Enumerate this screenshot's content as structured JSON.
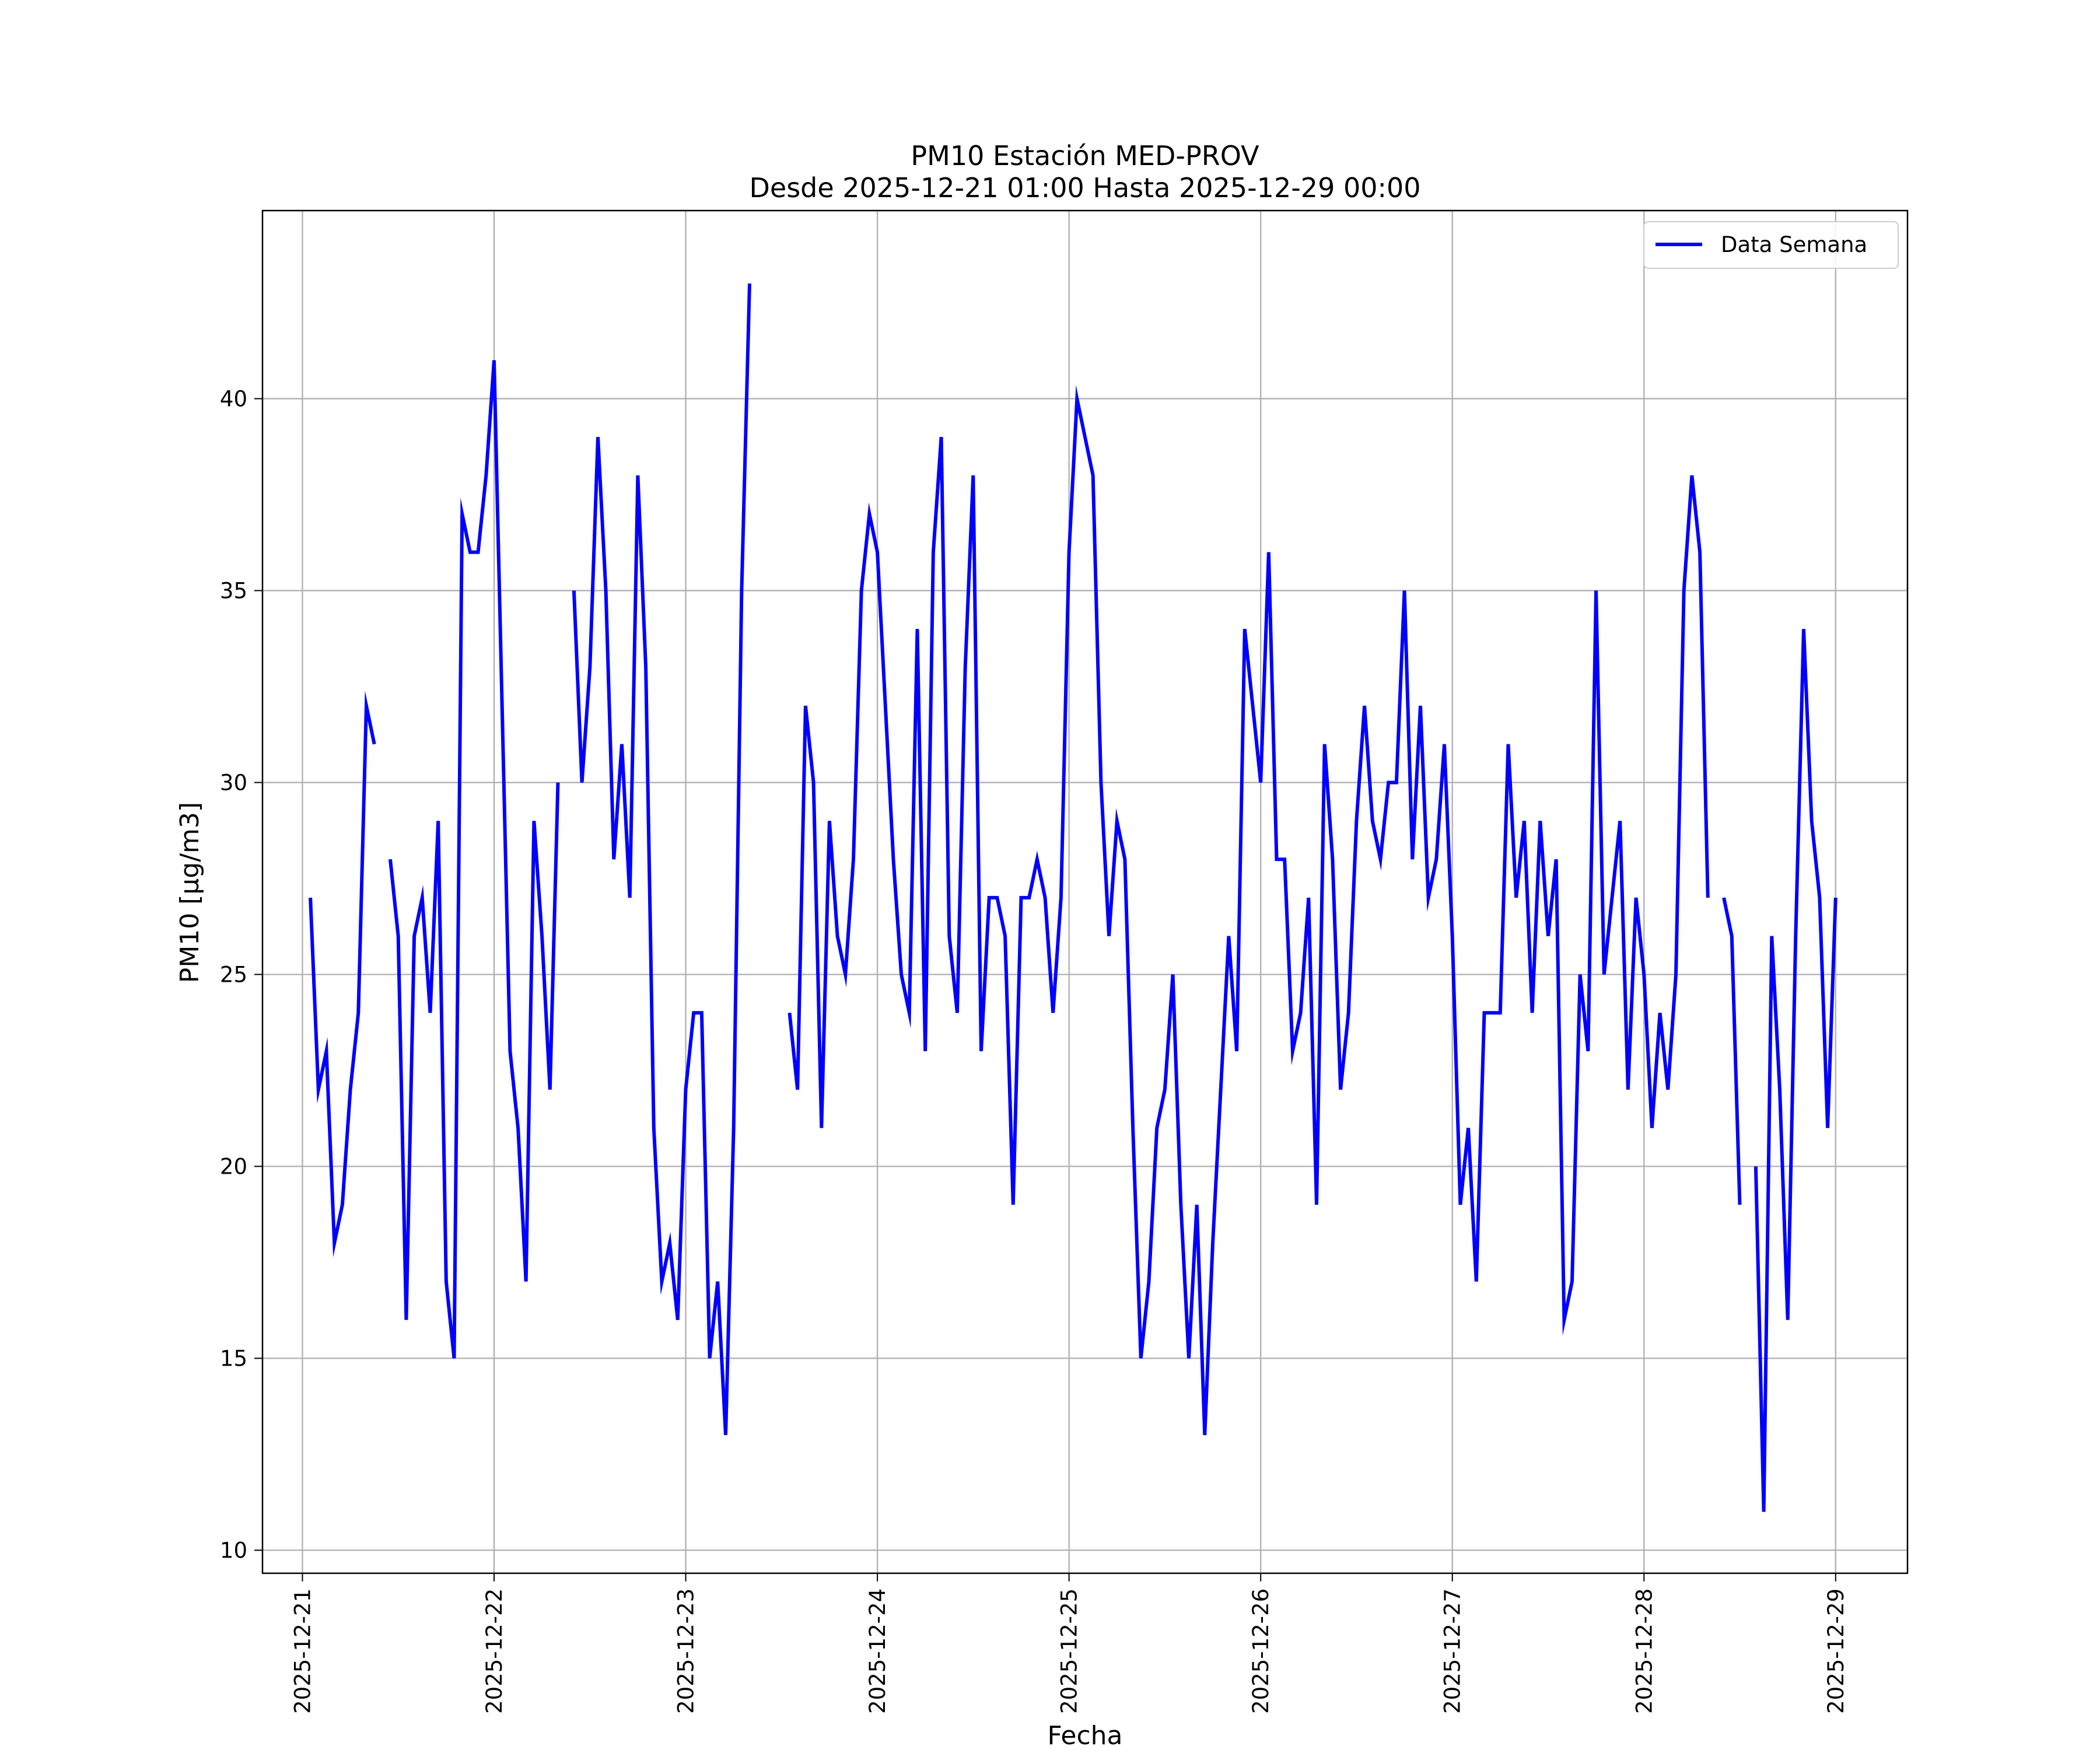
{
  "chart_data": {
    "type": "line",
    "title": "PM10 Estación MED-PROV",
    "subtitle": "Desde 2025-12-21 01:00 Hasta 2025-12-29 00:00",
    "xlabel": "Fecha",
    "ylabel": "PM10 [μg/m3]",
    "xlim": [
      "2025-12-20T19:00",
      "2025-12-29T09:00"
    ],
    "ylim": [
      9.4,
      44.9
    ],
    "x_ticks": [
      "2025-12-21",
      "2025-12-22",
      "2025-12-23",
      "2025-12-24",
      "2025-12-25",
      "2025-12-26",
      "2025-12-27",
      "2025-12-28",
      "2025-12-29"
    ],
    "y_ticks": [
      10,
      15,
      20,
      25,
      30,
      35,
      40
    ],
    "grid": true,
    "legend": {
      "position": "top-right",
      "entries": [
        "Data Semana"
      ]
    },
    "series": [
      {
        "name": "Data Semana",
        "color": "#0000ff",
        "segments": [
          [
            [
              "2025-12-21T01:00",
              27
            ],
            [
              "2025-12-21T02:00",
              22
            ],
            [
              "2025-12-21T03:00",
              23
            ],
            [
              "2025-12-21T04:00",
              18
            ],
            [
              "2025-12-21T05:00",
              19
            ],
            [
              "2025-12-21T06:00",
              22
            ],
            [
              "2025-12-21T07:00",
              24
            ],
            [
              "2025-12-21T08:00",
              32
            ],
            [
              "2025-12-21T09:00",
              31
            ]
          ],
          [
            [
              "2025-12-21T11:00",
              28
            ],
            [
              "2025-12-21T12:00",
              26
            ],
            [
              "2025-12-21T13:00",
              16
            ],
            [
              "2025-12-21T14:00",
              26
            ],
            [
              "2025-12-21T15:00",
              27
            ],
            [
              "2025-12-21T16:00",
              24
            ],
            [
              "2025-12-21T17:00",
              29
            ],
            [
              "2025-12-21T18:00",
              17
            ],
            [
              "2025-12-21T19:00",
              15
            ],
            [
              "2025-12-21T20:00",
              37
            ],
            [
              "2025-12-21T21:00",
              36
            ],
            [
              "2025-12-21T22:00",
              36
            ],
            [
              "2025-12-21T23:00",
              38
            ],
            [
              "2025-12-22T00:00",
              41
            ],
            [
              "2025-12-22T01:00",
              32
            ],
            [
              "2025-12-22T02:00",
              23
            ],
            [
              "2025-12-22T03:00",
              21
            ],
            [
              "2025-12-22T04:00",
              17
            ],
            [
              "2025-12-22T05:00",
              29
            ],
            [
              "2025-12-22T06:00",
              26
            ],
            [
              "2025-12-22T07:00",
              22
            ],
            [
              "2025-12-22T08:00",
              30
            ]
          ],
          [
            [
              "2025-12-22T10:00",
              35
            ],
            [
              "2025-12-22T11:00",
              30
            ],
            [
              "2025-12-22T12:00",
              33
            ],
            [
              "2025-12-22T13:00",
              39
            ],
            [
              "2025-12-22T14:00",
              35
            ],
            [
              "2025-12-22T15:00",
              28
            ],
            [
              "2025-12-22T16:00",
              31
            ],
            [
              "2025-12-22T17:00",
              27
            ],
            [
              "2025-12-22T18:00",
              38
            ],
            [
              "2025-12-22T19:00",
              33
            ],
            [
              "2025-12-22T20:00",
              21
            ],
            [
              "2025-12-22T21:00",
              17
            ],
            [
              "2025-12-22T22:00",
              18
            ],
            [
              "2025-12-22T23:00",
              16
            ],
            [
              "2025-12-23T00:00",
              22
            ],
            [
              "2025-12-23T01:00",
              24
            ],
            [
              "2025-12-23T02:00",
              24
            ],
            [
              "2025-12-23T03:00",
              15
            ],
            [
              "2025-12-23T04:00",
              17
            ],
            [
              "2025-12-23T05:00",
              13
            ],
            [
              "2025-12-23T06:00",
              21
            ],
            [
              "2025-12-23T07:00",
              35
            ],
            [
              "2025-12-23T08:00",
              43
            ]
          ],
          [
            [
              "2025-12-23T13:00",
              24
            ],
            [
              "2025-12-23T14:00",
              22
            ],
            [
              "2025-12-23T15:00",
              32
            ],
            [
              "2025-12-23T16:00",
              30
            ],
            [
              "2025-12-23T17:00",
              21
            ],
            [
              "2025-12-23T18:00",
              29
            ],
            [
              "2025-12-23T19:00",
              26
            ],
            [
              "2025-12-23T20:00",
              25
            ],
            [
              "2025-12-23T21:00",
              28
            ],
            [
              "2025-12-23T22:00",
              35
            ],
            [
              "2025-12-23T23:00",
              37
            ],
            [
              "2025-12-24T00:00",
              36
            ],
            [
              "2025-12-24T01:00",
              32
            ],
            [
              "2025-12-24T02:00",
              28
            ],
            [
              "2025-12-24T03:00",
              25
            ],
            [
              "2025-12-24T04:00",
              24
            ],
            [
              "2025-12-24T05:00",
              34
            ],
            [
              "2025-12-24T06:00",
              23
            ],
            [
              "2025-12-24T07:00",
              36
            ],
            [
              "2025-12-24T08:00",
              39
            ],
            [
              "2025-12-24T09:00",
              26
            ],
            [
              "2025-12-24T10:00",
              24
            ],
            [
              "2025-12-24T11:00",
              33
            ],
            [
              "2025-12-24T12:00",
              38
            ],
            [
              "2025-12-24T13:00",
              23
            ],
            [
              "2025-12-24T14:00",
              27
            ],
            [
              "2025-12-24T15:00",
              27
            ],
            [
              "2025-12-24T16:00",
              26
            ],
            [
              "2025-12-24T17:00",
              19
            ],
            [
              "2025-12-24T18:00",
              27
            ],
            [
              "2025-12-24T19:00",
              27
            ],
            [
              "2025-12-24T20:00",
              28
            ],
            [
              "2025-12-24T21:00",
              27
            ],
            [
              "2025-12-24T22:00",
              24
            ],
            [
              "2025-12-24T23:00",
              27
            ],
            [
              "2025-12-25T00:00",
              36
            ],
            [
              "2025-12-25T01:00",
              40
            ],
            [
              "2025-12-25T02:00",
              39
            ],
            [
              "2025-12-25T03:00",
              38
            ],
            [
              "2025-12-25T04:00",
              30
            ],
            [
              "2025-12-25T05:00",
              26
            ],
            [
              "2025-12-25T06:00",
              29
            ],
            [
              "2025-12-25T07:00",
              28
            ],
            [
              "2025-12-25T08:00",
              21
            ],
            [
              "2025-12-25T09:00",
              15
            ],
            [
              "2025-12-25T10:00",
              17
            ],
            [
              "2025-12-25T11:00",
              21
            ],
            [
              "2025-12-25T12:00",
              22
            ],
            [
              "2025-12-25T13:00",
              25
            ],
            [
              "2025-12-25T14:00",
              19
            ],
            [
              "2025-12-25T15:00",
              15
            ],
            [
              "2025-12-25T16:00",
              19
            ],
            [
              "2025-12-25T17:00",
              13
            ],
            [
              "2025-12-25T18:00",
              18
            ],
            [
              "2025-12-25T19:00",
              22
            ],
            [
              "2025-12-25T20:00",
              26
            ],
            [
              "2025-12-25T21:00",
              23
            ],
            [
              "2025-12-25T22:00",
              34
            ],
            [
              "2025-12-25T23:00",
              32
            ],
            [
              "2025-12-26T00:00",
              30
            ],
            [
              "2025-12-26T01:00",
              36
            ],
            [
              "2025-12-26T02:00",
              28
            ],
            [
              "2025-12-26T03:00",
              28
            ],
            [
              "2025-12-26T04:00",
              23
            ],
            [
              "2025-12-26T05:00",
              24
            ],
            [
              "2025-12-26T06:00",
              27
            ],
            [
              "2025-12-26T07:00",
              19
            ],
            [
              "2025-12-26T08:00",
              31
            ],
            [
              "2025-12-26T09:00",
              28
            ],
            [
              "2025-12-26T10:00",
              22
            ],
            [
              "2025-12-26T11:00",
              24
            ],
            [
              "2025-12-26T12:00",
              29
            ],
            [
              "2025-12-26T13:00",
              32
            ],
            [
              "2025-12-26T14:00",
              29
            ],
            [
              "2025-12-26T15:00",
              28
            ],
            [
              "2025-12-26T16:00",
              30
            ],
            [
              "2025-12-26T17:00",
              30
            ],
            [
              "2025-12-26T18:00",
              35
            ],
            [
              "2025-12-26T19:00",
              28
            ],
            [
              "2025-12-26T20:00",
              32
            ],
            [
              "2025-12-26T21:00",
              27
            ],
            [
              "2025-12-26T22:00",
              28
            ],
            [
              "2025-12-26T23:00",
              31
            ],
            [
              "2025-12-27T00:00",
              26
            ],
            [
              "2025-12-27T01:00",
              19
            ],
            [
              "2025-12-27T02:00",
              21
            ],
            [
              "2025-12-27T03:00",
              17
            ],
            [
              "2025-12-27T04:00",
              24
            ],
            [
              "2025-12-27T05:00",
              24
            ],
            [
              "2025-12-27T06:00",
              24
            ],
            [
              "2025-12-27T07:00",
              31
            ],
            [
              "2025-12-27T08:00",
              27
            ],
            [
              "2025-12-27T09:00",
              29
            ],
            [
              "2025-12-27T10:00",
              24
            ],
            [
              "2025-12-27T11:00",
              29
            ],
            [
              "2025-12-27T12:00",
              26
            ],
            [
              "2025-12-27T13:00",
              28
            ],
            [
              "2025-12-27T14:00",
              16
            ],
            [
              "2025-12-27T15:00",
              17
            ],
            [
              "2025-12-27T16:00",
              25
            ],
            [
              "2025-12-27T17:00",
              23
            ],
            [
              "2025-12-27T18:00",
              35
            ],
            [
              "2025-12-27T19:00",
              25
            ],
            [
              "2025-12-27T20:00",
              27
            ],
            [
              "2025-12-27T21:00",
              29
            ],
            [
              "2025-12-27T22:00",
              22
            ],
            [
              "2025-12-27T23:00",
              27
            ],
            [
              "2025-12-28T00:00",
              25
            ],
            [
              "2025-12-28T01:00",
              21
            ],
            [
              "2025-12-28T02:00",
              24
            ],
            [
              "2025-12-28T03:00",
              22
            ],
            [
              "2025-12-28T04:00",
              25
            ],
            [
              "2025-12-28T05:00",
              35
            ],
            [
              "2025-12-28T06:00",
              38
            ],
            [
              "2025-12-28T07:00",
              36
            ],
            [
              "2025-12-28T08:00",
              27
            ]
          ],
          [
            [
              "2025-12-28T10:00",
              27
            ],
            [
              "2025-12-28T11:00",
              26
            ],
            [
              "2025-12-28T12:00",
              19
            ]
          ],
          [
            [
              "2025-12-28T14:00",
              20
            ],
            [
              "2025-12-28T15:00",
              11
            ],
            [
              "2025-12-28T16:00",
              26
            ],
            [
              "2025-12-28T17:00",
              22
            ],
            [
              "2025-12-28T18:00",
              16
            ],
            [
              "2025-12-28T19:00",
              26
            ],
            [
              "2025-12-28T20:00",
              34
            ],
            [
              "2025-12-28T21:00",
              29
            ],
            [
              "2025-12-28T22:00",
              27
            ],
            [
              "2025-12-28T23:00",
              21
            ],
            [
              "2025-12-29T00:00",
              27
            ]
          ]
        ]
      }
    ]
  }
}
